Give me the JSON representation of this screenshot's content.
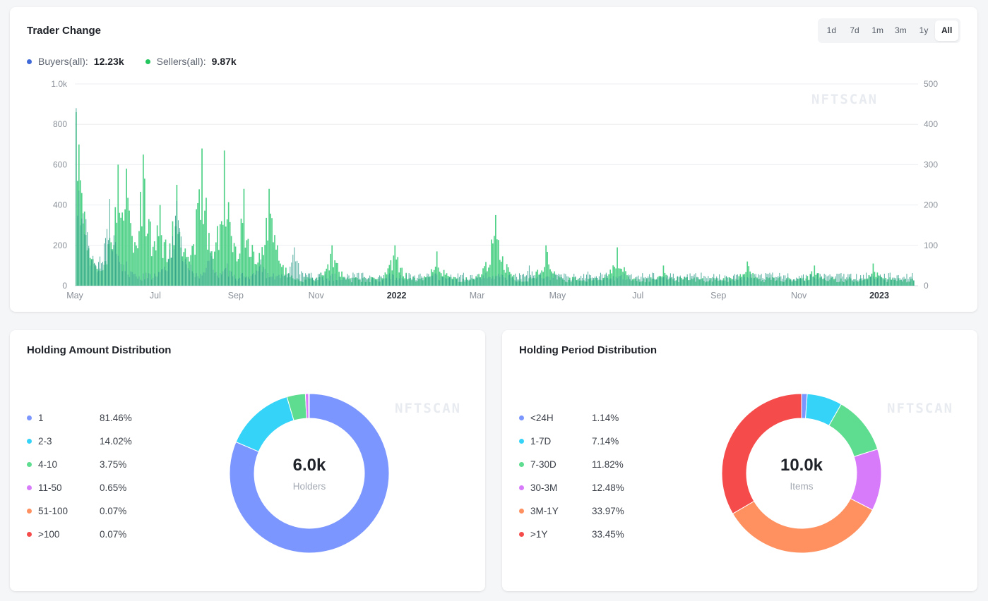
{
  "trader": {
    "title": "Trader Change",
    "ranges": [
      "1d",
      "7d",
      "1m",
      "3m",
      "1y",
      "All"
    ],
    "active_range": "All",
    "buyers_label": "Buyers(all):",
    "buyers_value": "12.23k",
    "sellers_label": "Sellers(all):",
    "sellers_value": "9.87k",
    "watermark": "NFTSCAN",
    "colors": {
      "buyers": "#3f6ad8",
      "sellers": "#22c55e",
      "bar_fill": "#4fd187"
    }
  },
  "chart_data": {
    "type": "bar",
    "title": "Trader Change",
    "left_axis": {
      "ticks": [
        "0",
        "200",
        "400",
        "600",
        "800",
        "1.0k"
      ],
      "range": [
        0,
        1000
      ]
    },
    "right_axis": {
      "ticks": [
        "0",
        "100",
        "200",
        "300",
        "400",
        "500"
      ],
      "range": [
        0,
        500
      ]
    },
    "x_ticks": [
      "May",
      "Jul",
      "Sep",
      "Nov",
      "2022",
      "Mar",
      "May",
      "Jul",
      "Sep",
      "Nov",
      "2023"
    ],
    "x_ticks_bold": [
      "2022",
      "2023"
    ],
    "series": [
      {
        "name": "Buyers(all)",
        "axis": "left",
        "peaks": [
          [
            0.0,
            880
          ],
          [
            0.04,
            430
          ],
          [
            0.06,
            120
          ],
          [
            0.12,
            420
          ],
          [
            0.16,
            170
          ],
          [
            0.18,
            110
          ],
          [
            0.22,
            130
          ],
          [
            0.26,
            190
          ],
          [
            0.41,
            60
          ],
          [
            0.54,
            100
          ],
          [
            0.61,
            70
          ],
          [
            0.76,
            40
          ],
          [
            0.88,
            40
          ]
        ],
        "baseline": 45
      },
      {
        "name": "Sellers(all)",
        "axis": "right",
        "peaks": [
          [
            0.0,
            430
          ],
          [
            0.004,
            350
          ],
          [
            0.05,
            300
          ],
          [
            0.06,
            290
          ],
          [
            0.08,
            325
          ],
          [
            0.1,
            200
          ],
          [
            0.12,
            250
          ],
          [
            0.15,
            340
          ],
          [
            0.177,
            335
          ],
          [
            0.2,
            240
          ],
          [
            0.23,
            240
          ],
          [
            0.305,
            100
          ],
          [
            0.38,
            100
          ],
          [
            0.43,
            85
          ],
          [
            0.5,
            175
          ],
          [
            0.56,
            100
          ],
          [
            0.645,
            95
          ],
          [
            0.7,
            50
          ],
          [
            0.8,
            60
          ],
          [
            0.88,
            50
          ],
          [
            0.95,
            55
          ]
        ],
        "baseline": 15
      }
    ]
  },
  "amount": {
    "title": "Holding Amount Distribution",
    "center_value": "6.0k",
    "center_label": "Holders",
    "watermark": "NFTSCAN",
    "items": [
      {
        "label": "1",
        "value": "81.46%",
        "pct": 81.46,
        "color": "#7c96ff"
      },
      {
        "label": "2-3",
        "value": "14.02%",
        "pct": 14.02,
        "color": "#35d3f7"
      },
      {
        "label": "4-10",
        "value": "3.75%",
        "pct": 3.75,
        "color": "#5edc8f"
      },
      {
        "label": "11-50",
        "value": "0.65%",
        "pct": 0.65,
        "color": "#d77bfa"
      },
      {
        "label": "51-100",
        "value": "0.07%",
        "pct": 0.07,
        "color": "#ff9060"
      },
      {
        "label": ">100",
        "value": "0.07%",
        "pct": 0.07,
        "color": "#f54b4b"
      }
    ]
  },
  "period": {
    "title": "Holding Period Distribution",
    "center_value": "10.0k",
    "center_label": "Items",
    "watermark": "NFTSCAN",
    "items": [
      {
        "label": "<24H",
        "value": "1.14%",
        "pct": 1.14,
        "color": "#7c96ff"
      },
      {
        "label": "1-7D",
        "value": "7.14%",
        "pct": 7.14,
        "color": "#35d3f7"
      },
      {
        "label": "7-30D",
        "value": "11.82%",
        "pct": 11.82,
        "color": "#5edc8f"
      },
      {
        "label": "30-3M",
        "value": "12.48%",
        "pct": 12.48,
        "color": "#d77bfa"
      },
      {
        "label": "3M-1Y",
        "value": "33.97%",
        "pct": 33.97,
        "color": "#ff9060"
      },
      {
        "label": ">1Y",
        "value": "33.45%",
        "pct": 33.45,
        "color": "#f54b4b"
      }
    ]
  }
}
